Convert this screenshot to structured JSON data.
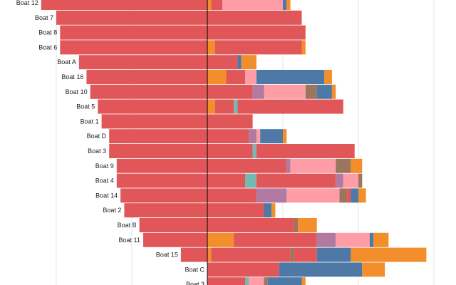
{
  "chart_data": {
    "type": "bar",
    "orientation": "horizontal-diverging",
    "title": "",
    "xlabel": "",
    "ylabel": "",
    "xlim": [
      -80,
      100
    ],
    "grid": true,
    "legend": "none",
    "categories": [
      "Boat 12",
      "Boat 7",
      "Boat 8",
      "Boat 6",
      "Boat A",
      "Boat 16",
      "Boat 10",
      "Boat 5",
      "Boat 1",
      "Boat D",
      "Boat 3",
      "Boat 9",
      "Boat 4",
      "Boat 14",
      "Boat 2",
      "Boat B",
      "Boat 11",
      "Boat 15",
      "Boat C",
      "Boat 3"
    ],
    "left_values": [
      44,
      40,
      39,
      39,
      34,
      32,
      31,
      29,
      28,
      26,
      26,
      24,
      24,
      23,
      22,
      18,
      17,
      7,
      0,
      0
    ],
    "right_segments": [
      [
        [
          "orange",
          1
        ],
        [
          "red",
          3
        ],
        [
          "pink",
          16
        ],
        [
          "blue",
          1
        ],
        [
          "orange",
          1
        ]
      ],
      [
        [
          "red",
          25
        ]
      ],
      [
        [
          "red",
          26
        ]
      ],
      [
        [
          "orange",
          2
        ],
        [
          "red",
          23
        ],
        [
          "orange",
          1
        ]
      ],
      [
        [
          "red",
          8
        ],
        [
          "blue",
          1
        ],
        [
          "orange",
          4
        ]
      ],
      [
        [
          "orange",
          5
        ],
        [
          "red",
          5
        ],
        [
          "pink",
          3
        ],
        [
          "blue",
          18
        ],
        [
          "orange",
          2
        ]
      ],
      [
        [
          "red",
          12
        ],
        [
          "purple",
          3
        ],
        [
          "pink",
          11
        ],
        [
          "brown",
          3
        ],
        [
          "blue",
          4
        ],
        [
          "orange",
          1
        ]
      ],
      [
        [
          "orange",
          2
        ],
        [
          "red",
          5
        ],
        [
          "teal",
          1
        ],
        [
          "red",
          28
        ]
      ],
      [
        [
          "red",
          12
        ]
      ],
      [
        [
          "red",
          11
        ],
        [
          "purple",
          2
        ],
        [
          "pink",
          1
        ],
        [
          "blue",
          6
        ],
        [
          "orange",
          1
        ]
      ],
      [
        [
          "red",
          12
        ],
        [
          "teal",
          1
        ],
        [
          "red",
          26
        ]
      ],
      [
        [
          "red",
          21
        ],
        [
          "purple",
          1
        ],
        [
          "pink",
          12
        ],
        [
          "brown",
          4
        ],
        [
          "orange",
          3
        ]
      ],
      [
        [
          "red",
          10
        ],
        [
          "teal",
          3
        ],
        [
          "red",
          21
        ],
        [
          "purple",
          2
        ],
        [
          "pink",
          4
        ],
        [
          "brown",
          1
        ]
      ],
      [
        [
          "red",
          13
        ],
        [
          "purple",
          8
        ],
        [
          "pink",
          14
        ],
        [
          "brown",
          2
        ],
        [
          "red",
          1
        ],
        [
          "blue",
          2
        ],
        [
          "orange",
          2
        ]
      ],
      [
        [
          "red",
          15
        ],
        [
          "blue",
          2
        ],
        [
          "orange",
          1
        ]
      ],
      [
        [
          "red",
          23
        ],
        [
          "brown",
          1
        ],
        [
          "orange",
          5
        ]
      ],
      [
        [
          "orange",
          7
        ],
        [
          "red",
          22
        ],
        [
          "purple",
          5
        ],
        [
          "pink",
          9
        ],
        [
          "blue",
          1
        ],
        [
          "orange",
          4
        ]
      ],
      [
        [
          "orange",
          1
        ],
        [
          "red",
          21
        ],
        [
          "brown",
          1
        ],
        [
          "red",
          6
        ],
        [
          "blue",
          9
        ],
        [
          "orange",
          20
        ]
      ],
      [
        [
          "red",
          19
        ],
        [
          "blue",
          22
        ],
        [
          "orange",
          6
        ]
      ],
      [
        [
          "red",
          10
        ],
        [
          "teal",
          1
        ],
        [
          "pink",
          4
        ],
        [
          "brown",
          1
        ],
        [
          "blue",
          9
        ],
        [
          "orange",
          1
        ]
      ]
    ],
    "colors": {
      "red": "#e15759",
      "orange": "#f28e2b",
      "pink": "#ff9da7",
      "blue": "#4e79a7",
      "purple": "#b07aa1",
      "brown": "#9c755f",
      "teal": "#76b7b2"
    }
  }
}
